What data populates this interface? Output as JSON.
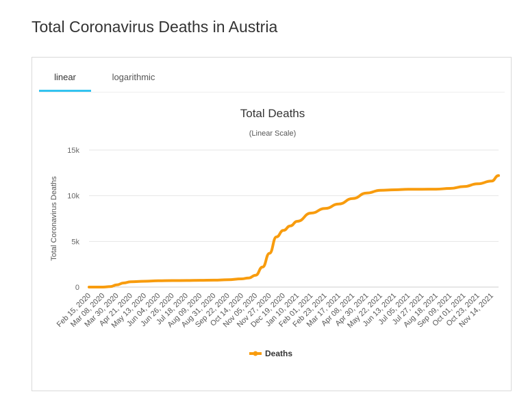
{
  "page": {
    "title": "Total Coronavirus Deaths in Austria"
  },
  "tabs": [
    {
      "label": "linear",
      "active": true
    },
    {
      "label": "logarithmic",
      "active": false
    }
  ],
  "colors": {
    "series": "#f89c0e",
    "tab_accent": "#33c3f0",
    "grid": "#e6e6e6"
  },
  "chart_data": {
    "type": "line",
    "title": "Total Deaths",
    "subtitle": "(Linear Scale)",
    "ylabel": "Total Coronavirus Deaths",
    "xlabel": "",
    "ylim": [
      0,
      15000
    ],
    "yticks": [
      0,
      5000,
      10000,
      15000
    ],
    "yticklabels": [
      "0",
      "5k",
      "10k",
      "15k"
    ],
    "grid": true,
    "legend_position": "bottom-center",
    "xtick_labels": [
      "Feb 15, 2020",
      "Mar 08, 2020",
      "Mar 30, 2020",
      "Apr 21, 2020",
      "May 13, 2020",
      "Jun 04, 2020",
      "Jun 26, 2020",
      "Jul 18, 2020",
      "Aug 09, 2020",
      "Aug 31, 2020",
      "Sep 22, 2020",
      "Oct 14, 2020",
      "Nov 05, 2020",
      "Nov 27, 2020",
      "Dec 19, 2020",
      "Jan 10, 2021",
      "Feb 01, 2021",
      "Feb 23, 2021",
      "Mar 17, 2021",
      "Apr 08, 2021",
      "Apr 30, 2021",
      "May 22, 2021",
      "Jun 13, 2021",
      "Jul 05, 2021",
      "Jul 27, 2021",
      "Aug 18, 2021",
      "Sep 09, 2021",
      "Oct 01, 2021",
      "Oct 23, 2021",
      "Nov 14, 2021"
    ],
    "series": [
      {
        "name": "Deaths",
        "x": [
          "Feb 15, 2020",
          "Mar 08, 2020",
          "Mar 20, 2020",
          "Mar 30, 2020",
          "Apr 10, 2020",
          "Apr 21, 2020",
          "May 13, 2020",
          "Jun 04, 2020",
          "Jun 26, 2020",
          "Jul 18, 2020",
          "Aug 09, 2020",
          "Aug 31, 2020",
          "Sep 22, 2020",
          "Oct 14, 2020",
          "Oct 25, 2020",
          "Nov 05, 2020",
          "Nov 16, 2020",
          "Nov 27, 2020",
          "Dec 08, 2020",
          "Dec 19, 2020",
          "Dec 30, 2020",
          "Jan 10, 2021",
          "Feb 01, 2021",
          "Feb 23, 2021",
          "Mar 17, 2021",
          "Apr 08, 2021",
          "Apr 30, 2021",
          "May 22, 2021",
          "Jun 13, 2021",
          "Jul 05, 2021",
          "Jul 27, 2021",
          "Aug 18, 2021",
          "Sep 09, 2021",
          "Oct 01, 2021",
          "Oct 23, 2021",
          "Nov 14, 2021",
          "Nov 25, 2021"
        ],
        "values": [
          0,
          0,
          50,
          250,
          450,
          580,
          640,
          690,
          710,
          720,
          740,
          760,
          800,
          900,
          1000,
          1300,
          2200,
          3700,
          5500,
          6200,
          6700,
          7200,
          8100,
          8600,
          9100,
          9700,
          10300,
          10600,
          10650,
          10700,
          10710,
          10720,
          10800,
          11000,
          11300,
          11600,
          12200
        ]
      }
    ]
  }
}
